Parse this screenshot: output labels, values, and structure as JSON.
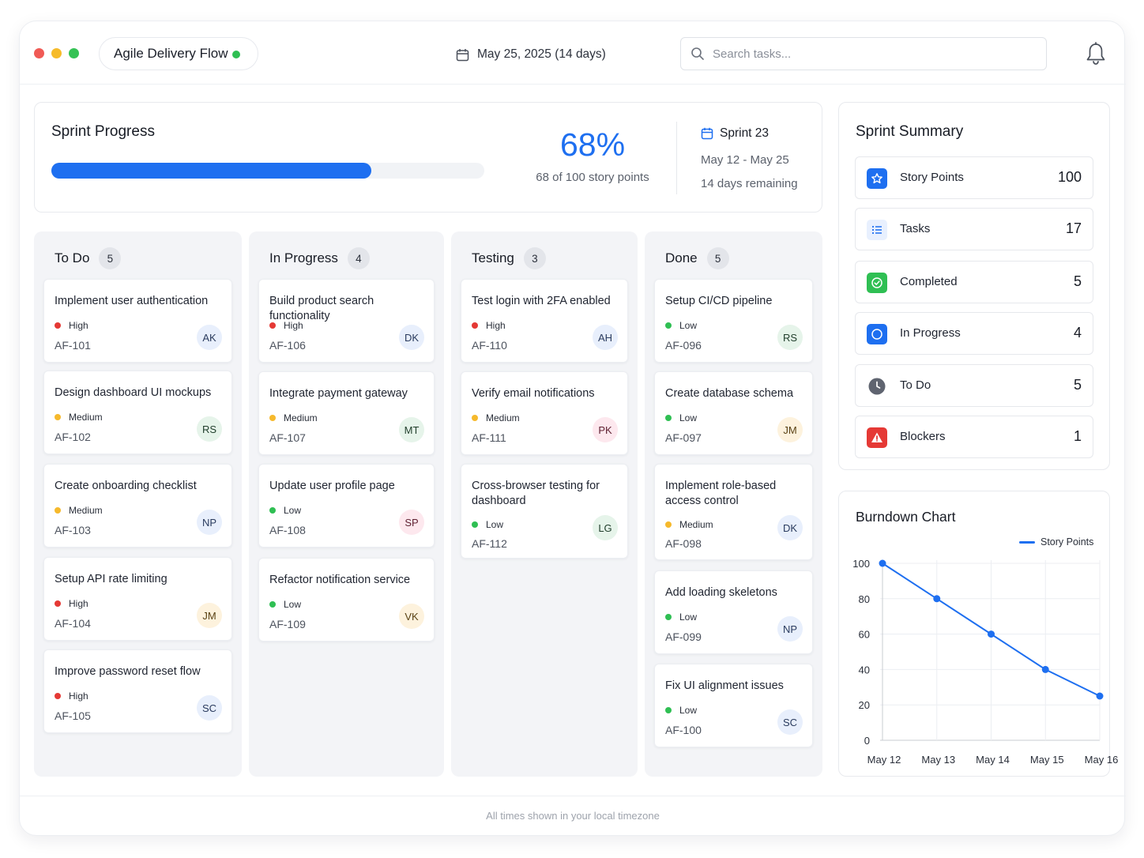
{
  "app": {
    "title": "Agile Delivery Flow"
  },
  "header": {
    "date_range": "May 25, 2025 (14 days)",
    "search_placeholder": "Search tasks..."
  },
  "progress": {
    "title": "Sprint Progress",
    "percent_value": 68,
    "percent_label": "68%",
    "points_label": "68 of 100 story points",
    "sprint_name": "Sprint 23",
    "dates": "May 12 - May 25",
    "remaining": "14 days remaining"
  },
  "colors": {
    "accent": "#1e6ff0",
    "high": "#e53935",
    "medium": "#f6b92c",
    "low": "#2fbf53",
    "column_bg": "#f3f4f7"
  },
  "board": {
    "columns": [
      {
        "title": "To Do",
        "count": "5",
        "cards": [
          {
            "title": "Implement user authentication",
            "priority": "High",
            "id": "AF-101",
            "assignee": "AK"
          },
          {
            "title": "Design dashboard UI mockups",
            "priority": "Medium",
            "id": "AF-102",
            "assignee": "RS"
          },
          {
            "title": "Create onboarding checklist",
            "priority": "Medium",
            "id": "AF-103",
            "assignee": "NP"
          },
          {
            "title": "Setup API rate limiting",
            "priority": "High",
            "id": "AF-104",
            "assignee": "JM"
          },
          {
            "title": "Improve password reset flow",
            "priority": "High",
            "id": "AF-105",
            "assignee": "SC"
          }
        ]
      },
      {
        "title": "In Progress",
        "count": "4",
        "cards": [
          {
            "title": "Build product search functionality",
            "priority": "High",
            "id": "AF-106",
            "assignee": "DK"
          },
          {
            "title": "Integrate payment gateway",
            "priority": "Medium",
            "id": "AF-107",
            "assignee": "MT"
          },
          {
            "title": "Update user profile page",
            "priority": "Low",
            "id": "AF-108",
            "assignee": "SP"
          },
          {
            "title": "Refactor notification service",
            "priority": "Low",
            "id": "AF-109",
            "assignee": "VK"
          }
        ]
      },
      {
        "title": "Testing",
        "count": "3",
        "cards": [
          {
            "title": "Test login with 2FA enabled",
            "priority": "High",
            "id": "AF-110",
            "assignee": "AH"
          },
          {
            "title": "Verify email notifications",
            "priority": "Medium",
            "id": "AF-111",
            "assignee": "PK"
          },
          {
            "title": "Cross-browser testing for dashboard",
            "priority": "Low",
            "id": "AF-112",
            "assignee": "LG"
          }
        ]
      },
      {
        "title": "Done",
        "count": "5",
        "cards": [
          {
            "title": "Setup CI/CD pipeline",
            "priority": "Low",
            "id": "AF-096",
            "assignee": "RS"
          },
          {
            "title": "Create database schema",
            "priority": "Low",
            "id": "AF-097",
            "assignee": "JM"
          },
          {
            "title": "Implement role-based access control",
            "priority": "Medium",
            "id": "AF-098",
            "assignee": "DK"
          },
          {
            "title": "Add loading skeletons",
            "priority": "Low",
            "id": "AF-099",
            "assignee": "NP"
          },
          {
            "title": "Fix UI alignment issues",
            "priority": "Low",
            "id": "AF-100",
            "assignee": "SC"
          }
        ]
      }
    ]
  },
  "summary": {
    "title": "Sprint Summary",
    "rows": [
      {
        "label": "Story Points",
        "value": "100",
        "icon": "star-icon",
        "color": "#1e6ff0"
      },
      {
        "label": "Tasks",
        "value": "17",
        "icon": "list-icon",
        "color": "#1e6ff0"
      },
      {
        "label": "Completed",
        "value": "5",
        "icon": "check-circle-icon",
        "color": "#2fbf53"
      },
      {
        "label": "In Progress",
        "value": "4",
        "icon": "progress-circle-icon",
        "color": "#1e6ff0"
      },
      {
        "label": "To Do",
        "value": "5",
        "icon": "clock-icon",
        "color": "#5f6470"
      },
      {
        "label": "Blockers",
        "value": "1",
        "icon": "warning-icon",
        "color": "#e53935"
      }
    ]
  },
  "burndown": {
    "title": "Burndown Chart",
    "chart_data": {
      "type": "line",
      "title": "Burndown Chart",
      "categories": [
        "May 12",
        "May 13",
        "May 14",
        "May 15",
        "May 16"
      ],
      "series": [
        {
          "name": "Story Points",
          "values": [
            100,
            80,
            60,
            40,
            25
          ]
        }
      ],
      "ylim": [
        0,
        100
      ],
      "yticks": [
        0,
        20,
        40,
        60,
        80,
        100
      ],
      "grid": true,
      "legend_position": "top-right"
    }
  },
  "footer": {
    "text": "All times shown in your local timezone"
  }
}
